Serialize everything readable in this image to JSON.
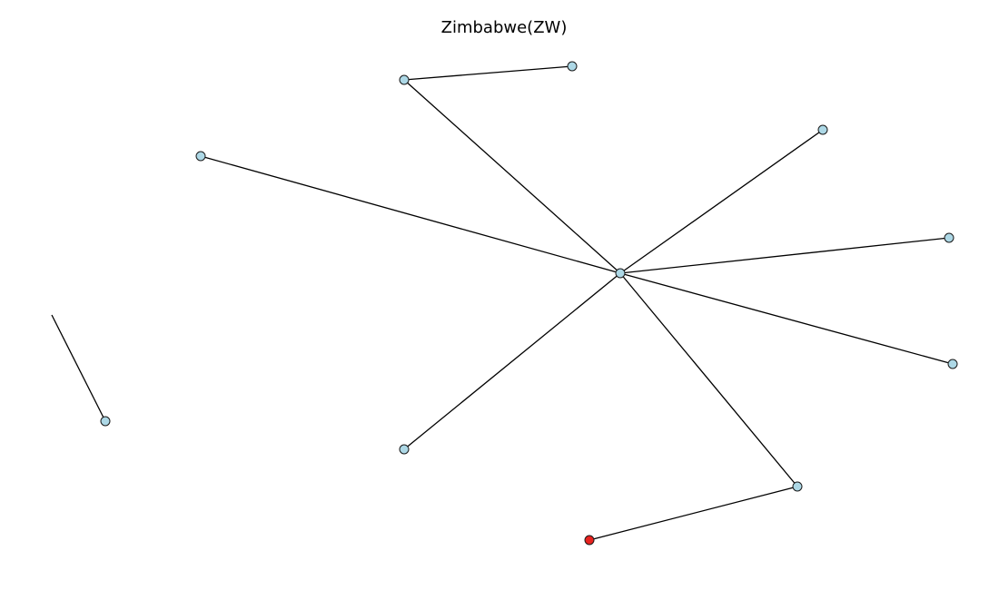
{
  "title": "Zimbabwe(ZW)",
  "colors": {
    "background": "#ffffff",
    "edge": "#000000",
    "node_fill": "#add8e6",
    "node_highlight": "#e8231f",
    "node_stroke": "#1a1a1a"
  },
  "graph": {
    "nodes": [
      {
        "id": "hub",
        "highlight": false
      },
      {
        "id": "n-top-left",
        "highlight": false
      },
      {
        "id": "n-top-right",
        "highlight": false
      },
      {
        "id": "n-upper-left",
        "highlight": false
      },
      {
        "id": "n-upper-right",
        "highlight": false
      },
      {
        "id": "n-right-mid",
        "highlight": false
      },
      {
        "id": "n-right-low",
        "highlight": false
      },
      {
        "id": "n-lower-center",
        "highlight": false
      },
      {
        "id": "n-lower-right",
        "highlight": false
      },
      {
        "id": "n-bottom-red",
        "highlight": true
      },
      {
        "id": "n-far-left",
        "highlight": false
      }
    ],
    "edges": [
      [
        "n-top-left",
        "n-top-right"
      ],
      [
        "n-top-left",
        "hub"
      ],
      [
        "n-upper-left",
        "hub"
      ],
      [
        "n-upper-right",
        "hub"
      ],
      [
        "n-right-mid",
        "hub"
      ],
      [
        "n-right-low",
        "hub"
      ],
      [
        "n-lower-center",
        "hub"
      ],
      [
        "n-lower-right",
        "hub"
      ],
      [
        "n-lower-right",
        "n-bottom-red"
      ],
      [
        "n-far-left",
        "offscreen-end"
      ]
    ]
  }
}
